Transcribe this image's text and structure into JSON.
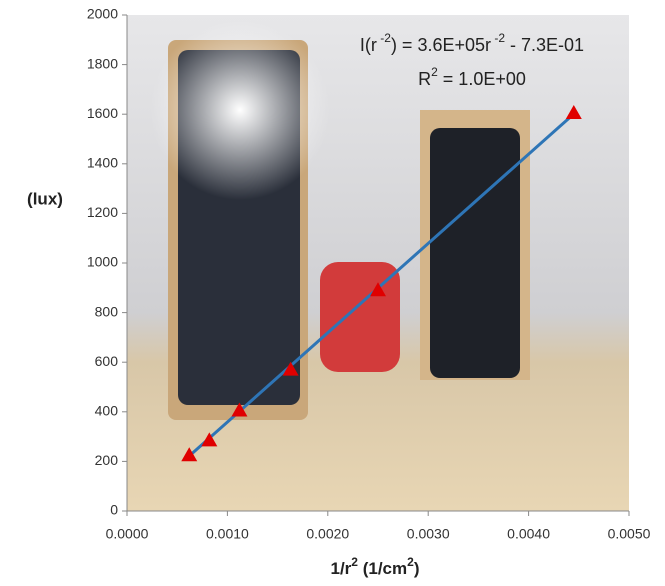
{
  "chart_data": {
    "type": "scatter",
    "y_label": "(lux)",
    "x_label": [
      "1/r",
      "2",
      " (1/cm",
      "2",
      ")"
    ],
    "equation": [
      "I(r",
      " -2",
      ") = 3.6E+05r",
      " -2",
      " - 7.3E-01"
    ],
    "r_squared": [
      "R",
      "2",
      " = 1.0E+00"
    ],
    "series": [
      {
        "color": "#e00000",
        "x": [
          0.00062,
          0.00082,
          0.00112,
          0.00163,
          0.0025,
          0.00445
        ],
        "values": [
          225,
          285,
          405,
          570,
          890,
          1605
        ]
      }
    ],
    "trendline": {
      "color": "#2e75b6",
      "x": [
        0.00062,
        0.00445
      ],
      "values": [
        222,
        1601
      ]
    },
    "xlim": [
      0,
      0.005
    ],
    "xticks": [
      {
        "value": 0,
        "label": "0.0000"
      },
      {
        "value": 0.001,
        "label": "0.0010"
      },
      {
        "value": 0.002,
        "label": "0.0020"
      },
      {
        "value": 0.003,
        "label": "0.0030"
      },
      {
        "value": 0.004,
        "label": "0.0040"
      },
      {
        "value": 0.005,
        "label": "0.0050"
      }
    ],
    "ylim": [
      0,
      2000
    ],
    "yticks": [
      0,
      200,
      400,
      600,
      800,
      1000,
      1200,
      1400,
      1600,
      1800,
      2000
    ]
  }
}
